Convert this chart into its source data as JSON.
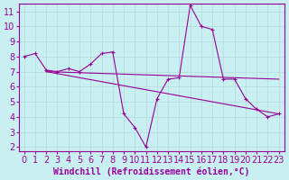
{
  "xlabel": "Windchill (Refroidissement éolien,°C)",
  "bg_color": "#c8f0f0",
  "grid_color": "#b8dede",
  "line_color": "#990099",
  "xlim": [
    -0.5,
    23.5
  ],
  "ylim": [
    1.7,
    11.5
  ],
  "yticks": [
    2,
    3,
    4,
    5,
    6,
    7,
    8,
    9,
    10,
    11
  ],
  "xticks": [
    0,
    1,
    2,
    3,
    4,
    5,
    6,
    7,
    8,
    9,
    10,
    11,
    12,
    13,
    14,
    15,
    16,
    17,
    18,
    19,
    20,
    21,
    22,
    23
  ],
  "line1_x": [
    0,
    1,
    2,
    3,
    4,
    5,
    6,
    7,
    8,
    9,
    10,
    11,
    12,
    13,
    14,
    15,
    16,
    17,
    18,
    19,
    20,
    21,
    22,
    23
  ],
  "line1_y": [
    8.0,
    8.2,
    7.1,
    7.0,
    7.2,
    7.0,
    7.5,
    8.2,
    8.3,
    4.2,
    3.3,
    2.0,
    5.2,
    6.5,
    6.6,
    11.4,
    10.0,
    9.8,
    6.5,
    6.5,
    5.2,
    4.5,
    4.0,
    4.2
  ],
  "trend1_x": [
    2,
    23
  ],
  "trend1_y": [
    7.0,
    6.5
  ],
  "trend2_x": [
    2,
    23
  ],
  "trend2_y": [
    7.0,
    4.2
  ],
  "font_size_xlabel": 7,
  "font_size_tick": 7
}
